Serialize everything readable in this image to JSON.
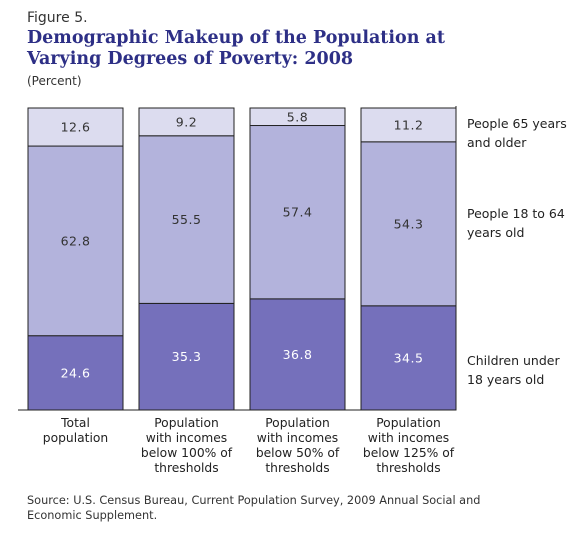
{
  "figure_label": "Figure 5.",
  "title_lines": [
    "Demographic Makeup of the Population at",
    "Varying Degrees of Poverty: 2008"
  ],
  "unit": "(Percent)",
  "source_lines": [
    "Source: U.S. Census Bureau, Current Population Survey, 2009 Annual Social and",
    "Economic Supplement."
  ],
  "chart_data": {
    "type": "bar",
    "stacked": true,
    "categories": [
      [
        "Total",
        "population"
      ],
      [
        "Population",
        "with incomes",
        "below 100% of",
        "thresholds"
      ],
      [
        "Population",
        "with incomes",
        "below 50% of",
        "thresholds"
      ],
      [
        "Population",
        "with incomes",
        "below 125% of",
        "thresholds"
      ]
    ],
    "series": [
      {
        "name_lines": [
          "Children under",
          "18 years old"
        ],
        "values": [
          24.6,
          35.3,
          36.8,
          34.5
        ],
        "color": "#7570bb",
        "label_color": "#ffffff"
      },
      {
        "name_lines": [
          "People 18 to 64",
          "years old"
        ],
        "values": [
          62.8,
          55.5,
          57.4,
          54.3
        ],
        "color": "#b3b3dc",
        "label_color": "#333333"
      },
      {
        "name_lines": [
          "People 65 years",
          "and older"
        ],
        "values": [
          12.6,
          9.2,
          5.8,
          11.2
        ],
        "color": "#dcdcef",
        "label_color": "#333333"
      }
    ],
    "value_labels": [
      [
        "24.6",
        "35.3",
        "36.8",
        "34.5"
      ],
      [
        "62.8",
        "55.5",
        "57.4",
        "54.3"
      ],
      [
        "12.6",
        "9.2",
        "5.8",
        "11.2"
      ]
    ],
    "ylim": [
      0,
      100
    ],
    "legend": "right",
    "grid": false
  }
}
